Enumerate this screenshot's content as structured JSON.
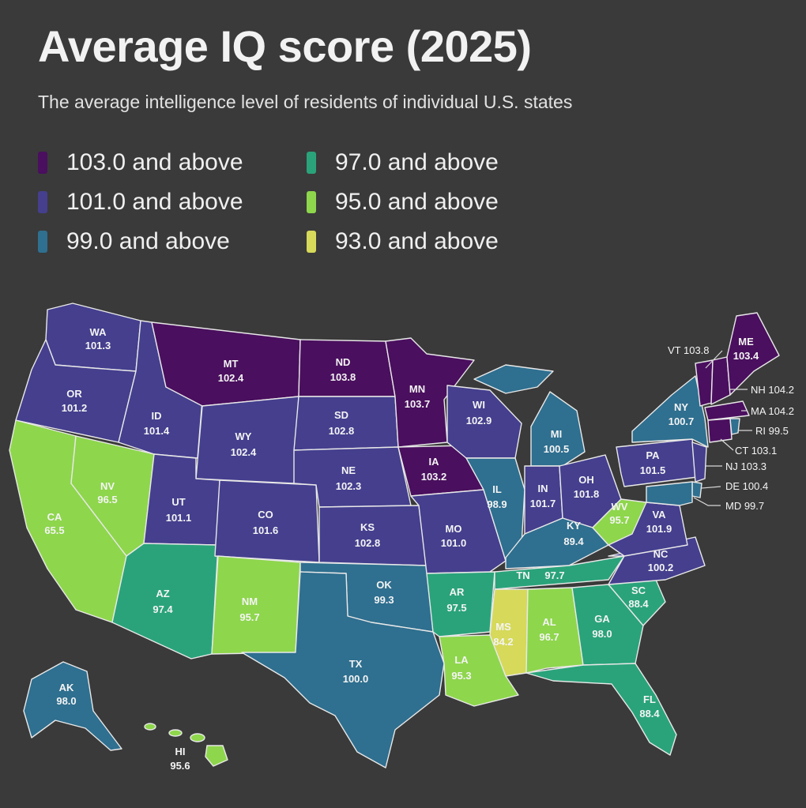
{
  "title": "Average IQ score (2025)",
  "subtitle": "The average intelligence level of residents of individual U.S. states",
  "legend": [
    {
      "label": "103.0 and above",
      "color": "#4a0f5e"
    },
    {
      "label": "101.0 and above",
      "color": "#453f8e"
    },
    {
      "label": "99.0 and above",
      "color": "#2f6f8f"
    },
    {
      "label": "97.0 and above",
      "color": "#2aa37a"
    },
    {
      "label": "95.0 and above",
      "color": "#8ed64c"
    },
    {
      "label": "93.0 and above",
      "color": "#d6d95a"
    }
  ],
  "states": {
    "WA": {
      "name": "WA",
      "value": "101.3"
    },
    "OR": {
      "name": "OR",
      "value": "101.2"
    },
    "CA": {
      "name": "CA",
      "value": "65.5"
    },
    "NV": {
      "name": "NV",
      "value": "96.5"
    },
    "ID": {
      "name": "ID",
      "value": "101.4"
    },
    "MT": {
      "name": "MT",
      "value": "102.4"
    },
    "WY": {
      "name": "WY",
      "value": "102.4"
    },
    "UT": {
      "name": "UT",
      "value": "101.1"
    },
    "AZ": {
      "name": "AZ",
      "value": "97.4"
    },
    "CO": {
      "name": "CO",
      "value": "101.6"
    },
    "NM": {
      "name": "NM",
      "value": "95.7"
    },
    "ND": {
      "name": "ND",
      "value": "103.8"
    },
    "SD": {
      "name": "SD",
      "value": "102.8"
    },
    "NE": {
      "name": "NE",
      "value": "102.3"
    },
    "KS": {
      "name": "KS",
      "value": "102.8"
    },
    "OK": {
      "name": "OK",
      "value": "99.3"
    },
    "TX": {
      "name": "TX",
      "value": "100.0"
    },
    "MN": {
      "name": "MN",
      "value": "103.7"
    },
    "IA": {
      "name": "IA",
      "value": "103.2"
    },
    "MO": {
      "name": "MO",
      "value": "101.0"
    },
    "AR": {
      "name": "AR",
      "value": "97.5"
    },
    "LA": {
      "name": "LA",
      "value": "95.3"
    },
    "WI": {
      "name": "WI",
      "value": "102.9"
    },
    "IL": {
      "name": "IL",
      "value": "98.9"
    },
    "MI": {
      "name": "MI",
      "value": "100.5"
    },
    "IN": {
      "name": "IN",
      "value": "101.7"
    },
    "OH": {
      "name": "OH",
      "value": "101.8"
    },
    "KY": {
      "name": "KY",
      "value": "89.4"
    },
    "TN": {
      "name": "TN",
      "value": "97.7"
    },
    "MS": {
      "name": "MS",
      "value": "84.2"
    },
    "AL": {
      "name": "AL",
      "value": "96.7"
    },
    "GA": {
      "name": "GA",
      "value": "98.0"
    },
    "FL": {
      "name": "FL",
      "value": "88.4"
    },
    "SC": {
      "name": "SC",
      "value": "88.4"
    },
    "NC": {
      "name": "NC",
      "value": "100.2"
    },
    "VA": {
      "name": "VA",
      "value": "101.9"
    },
    "WV": {
      "name": "WV",
      "value": "95.7"
    },
    "PA": {
      "name": "PA",
      "value": "101.5"
    },
    "NY": {
      "name": "NY",
      "value": "100.7"
    },
    "ME": {
      "name": "ME",
      "value": "103.4"
    },
    "AK": {
      "name": "AK",
      "value": "98.0"
    },
    "HI": {
      "name": "HI",
      "value": "95.6"
    }
  },
  "callouts": {
    "VT": "VT 103.8",
    "NH": "NH 104.2",
    "MA": "MA 104.2",
    "RI": "RI 99.5",
    "CT": "CT 103.1",
    "NJ": "NJ 103.3",
    "DE": "DE 100.4",
    "MD": "MD 99.7"
  }
}
